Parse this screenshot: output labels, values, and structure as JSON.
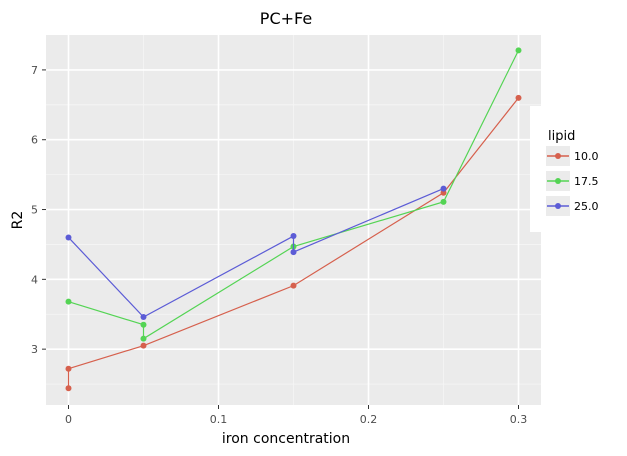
{
  "chart_data": {
    "type": "line",
    "title": "PC+Fe",
    "xlabel": "iron concentration",
    "ylabel": "R2",
    "xlim": [
      -0.015,
      0.315
    ],
    "ylim": [
      2.2,
      7.5
    ],
    "x_ticks": [
      0,
      0.1,
      0.2,
      0.3
    ],
    "x_tick_labels": [
      "0",
      "0.1",
      "0.2",
      "0.3"
    ],
    "y_ticks": [
      3,
      4,
      5,
      6,
      7
    ],
    "y_tick_labels": [
      "3",
      "4",
      "5",
      "6",
      "7"
    ],
    "grid": true,
    "legend": {
      "title": "lipid",
      "position": "right"
    },
    "series": [
      {
        "name": "10.0",
        "color": "#d6604d",
        "points": [
          [
            0,
            2.44
          ],
          [
            0,
            2.72
          ],
          [
            0.05,
            3.05
          ],
          [
            0.15,
            3.91
          ],
          [
            0.25,
            5.24
          ],
          [
            0.3,
            6.6
          ]
        ]
      },
      {
        "name": "17.5",
        "color": "#54d454",
        "points": [
          [
            0,
            3.68
          ],
          [
            0.05,
            3.35
          ],
          [
            0.05,
            3.15
          ],
          [
            0.15,
            4.47
          ],
          [
            0.25,
            5.11
          ],
          [
            0.3,
            7.28
          ]
        ]
      },
      {
        "name": "25.0",
        "color": "#5c5cd6",
        "points": [
          [
            0,
            4.6
          ],
          [
            0.05,
            3.46
          ],
          [
            0.15,
            4.62
          ],
          [
            0.15,
            4.39
          ],
          [
            0.25,
            5.3
          ]
        ]
      }
    ]
  }
}
